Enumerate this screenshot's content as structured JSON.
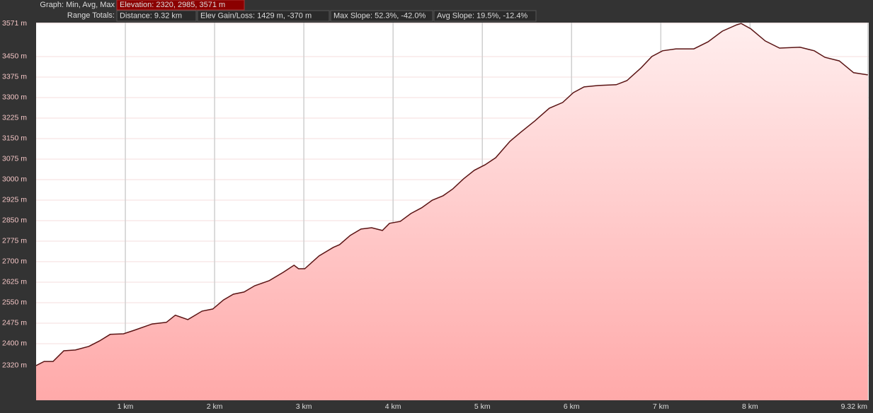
{
  "header": {
    "graph_label": "Graph: Min, Avg, Max",
    "elevation": "Elevation: 2320, 2985, 3571 m",
    "range_label": "Range Totals:",
    "totals": [
      "Distance: 9.32 km",
      "Elev Gain/Loss: 1429 m, -370 m",
      "Max Slope: 52.3%, -42.0%",
      "Avg Slope: 19.5%, -12.4%"
    ]
  },
  "chart_data": {
    "type": "area",
    "x": [
      0,
      0.09,
      0.19,
      0.31,
      0.44,
      0.59,
      0.71,
      0.83,
      0.98,
      1.1,
      1.3,
      1.46,
      1.56,
      1.7,
      1.86,
      1.98,
      2.1,
      2.21,
      2.33,
      2.45,
      2.61,
      2.77,
      2.89,
      2.94,
      3.01,
      3.17,
      3.33,
      3.4,
      3.52,
      3.64,
      3.76,
      3.88,
      3.96,
      4.08,
      4.2,
      4.32,
      4.44,
      4.56,
      4.67,
      4.79,
      4.91,
      5.03,
      5.15,
      5.31,
      5.43,
      5.59,
      5.75,
      5.9,
      6.02,
      6.14,
      6.3,
      6.5,
      6.62,
      6.78,
      6.9,
      7.02,
      7.17,
      7.37,
      7.53,
      7.69,
      7.85,
      7.9,
      8.01,
      8.17,
      8.33,
      8.56,
      8.72,
      8.84,
      9.0,
      9.16,
      9.32
    ],
    "values": [
      2320,
      2335,
      2335,
      2374,
      2377,
      2390,
      2410,
      2434,
      2436,
      2449,
      2472,
      2478,
      2504,
      2488,
      2519,
      2527,
      2560,
      2581,
      2589,
      2612,
      2630,
      2661,
      2687,
      2674,
      2674,
      2721,
      2752,
      2762,
      2796,
      2819,
      2824,
      2814,
      2840,
      2847,
      2876,
      2897,
      2925,
      2941,
      2966,
      3003,
      3034,
      3054,
      3080,
      3140,
      3173,
      3215,
      3261,
      3282,
      3318,
      3339,
      3344,
      3347,
      3362,
      3409,
      3450,
      3471,
      3478,
      3478,
      3504,
      3543,
      3566,
      3571,
      3551,
      3507,
      3481,
      3484,
      3471,
      3447,
      3434,
      3391,
      3383
    ],
    "color": "#5a1414",
    "xlim": [
      0,
      9.33
    ],
    "ylim": [
      2193,
      3574
    ],
    "xticks": [
      {
        "value": 1,
        "label": "1 km"
      },
      {
        "value": 2,
        "label": "2 km"
      },
      {
        "value": 3,
        "label": "3 km"
      },
      {
        "value": 4,
        "label": "4 km"
      },
      {
        "value": 5,
        "label": "5 km"
      },
      {
        "value": 6,
        "label": "6 km"
      },
      {
        "value": 7,
        "label": "7 km"
      },
      {
        "value": 8,
        "label": "8 km"
      },
      {
        "value": 9.32,
        "label": "9.32 km"
      }
    ],
    "yticks": [
      {
        "value": 2320,
        "label": "2320 m"
      },
      {
        "value": 2400,
        "label": "2400 m"
      },
      {
        "value": 2475,
        "label": "2475 m"
      },
      {
        "value": 2550,
        "label": "2550 m"
      },
      {
        "value": 2625,
        "label": "2625 m"
      },
      {
        "value": 2700,
        "label": "2700 m"
      },
      {
        "value": 2775,
        "label": "2775 m"
      },
      {
        "value": 2850,
        "label": "2850 m"
      },
      {
        "value": 2925,
        "label": "2925 m"
      },
      {
        "value": 3000,
        "label": "3000 m"
      },
      {
        "value": 3075,
        "label": "3075 m"
      },
      {
        "value": 3150,
        "label": "3150 m"
      },
      {
        "value": 3225,
        "label": "3225 m"
      },
      {
        "value": 3300,
        "label": "3300 m"
      },
      {
        "value": 3375,
        "label": "3375 m"
      },
      {
        "value": 3450,
        "label": "3450 m"
      },
      {
        "value": 3571,
        "label": "3571 m"
      }
    ],
    "grid": true
  }
}
